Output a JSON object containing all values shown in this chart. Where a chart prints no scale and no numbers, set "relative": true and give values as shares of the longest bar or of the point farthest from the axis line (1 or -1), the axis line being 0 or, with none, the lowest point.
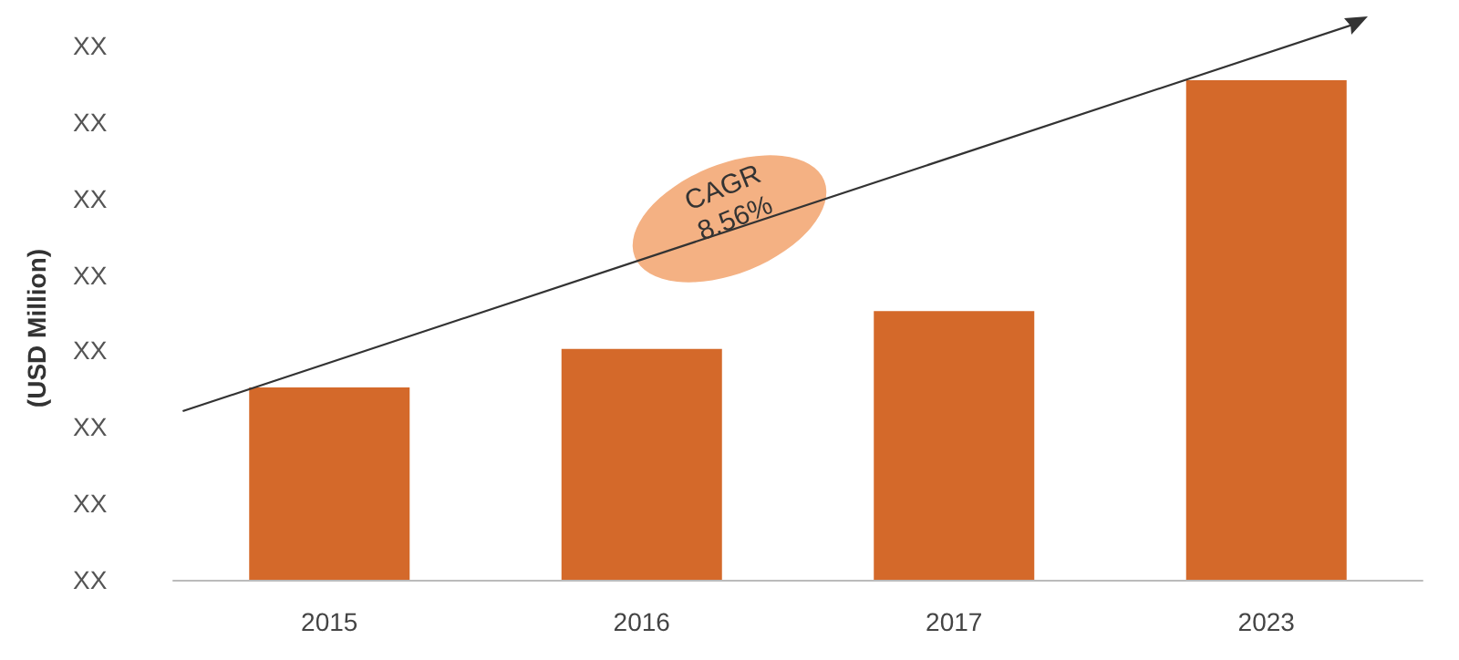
{
  "chart_data": {
    "type": "bar",
    "ylabel": "(USD Million)",
    "categories": [
      "2015",
      "2016",
      "2017",
      "2023"
    ],
    "values": [
      0.385,
      0.462,
      0.538,
      1
    ],
    "color": "#d4692a",
    "relative": true,
    "annotations": [
      "CAGR\n8.56%",
      "XX",
      "XX",
      "XX",
      "XX",
      "XX",
      "XX",
      "XX",
      "XX"
    ]
  }
}
